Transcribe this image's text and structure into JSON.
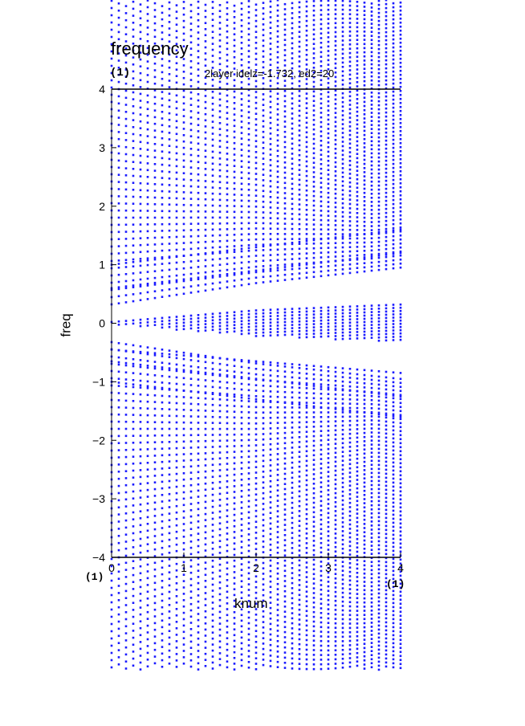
{
  "title": "frequency",
  "panel_id": "(1)",
  "subtitle": "2layer idelz=-1.732, ed2=20",
  "x_left_tag": "(1)",
  "x_right_tag": "(1)",
  "colors": {
    "points": "#1a1aff",
    "axes": "#000000"
  },
  "chart_data": {
    "type": "scatter",
    "title": "frequency",
    "xlabel": "knum",
    "ylabel": "freq",
    "xlim": [
      0,
      4
    ],
    "ylim": [
      -4,
      4
    ],
    "xticks": [
      "0",
      "1",
      "2",
      "3",
      "4"
    ],
    "yticks": [
      "-4",
      "-3",
      "-2",
      "-1",
      "0",
      "1",
      "2",
      "3",
      "4"
    ],
    "k_values": [
      0,
      0.1,
      0.2,
      0.3,
      0.4,
      0.5,
      0.6,
      0.7,
      0.8,
      0.9,
      1.0,
      1.1,
      1.2,
      1.3,
      1.4,
      1.5,
      1.6,
      1.7,
      1.8,
      1.9,
      2.0,
      2.1,
      2.2,
      2.3,
      2.4,
      2.5,
      2.6,
      2.7,
      2.8,
      2.9,
      3.0,
      3.1,
      3.2,
      3.3,
      3.4,
      3.5,
      3.6,
      3.7,
      3.8,
      3.9,
      4.0
    ],
    "gravity_band_max_freq": [
      0.02,
      0.03,
      0.04,
      0.05,
      0.06,
      0.07,
      0.08,
      0.09,
      0.1,
      0.11,
      0.12,
      0.13,
      0.14,
      0.15,
      0.16,
      0.17,
      0.18,
      0.19,
      0.2,
      0.21,
      0.22,
      0.225,
      0.23,
      0.235,
      0.24,
      0.245,
      0.25,
      0.255,
      0.26,
      0.265,
      0.27,
      0.275,
      0.28,
      0.285,
      0.29,
      0.295,
      0.3,
      0.305,
      0.31,
      0.315,
      0.32
    ],
    "branches": [
      {
        "name": "",
        "freq_at_k0": 0.6,
        "slope": 0.15
      },
      {
        "name": "",
        "freq_at_k0": 1.0,
        "slope": 0.15
      },
      {
        "name": "",
        "freq_at_k0": -0.45,
        "slope": -0.1
      },
      {
        "name": "",
        "freq_at_k0": -0.65,
        "slope": -0.15
      },
      {
        "name": "",
        "freq_at_k0": -1.0,
        "slope": -0.15
      }
    ],
    "grid": false,
    "legend": "none"
  }
}
